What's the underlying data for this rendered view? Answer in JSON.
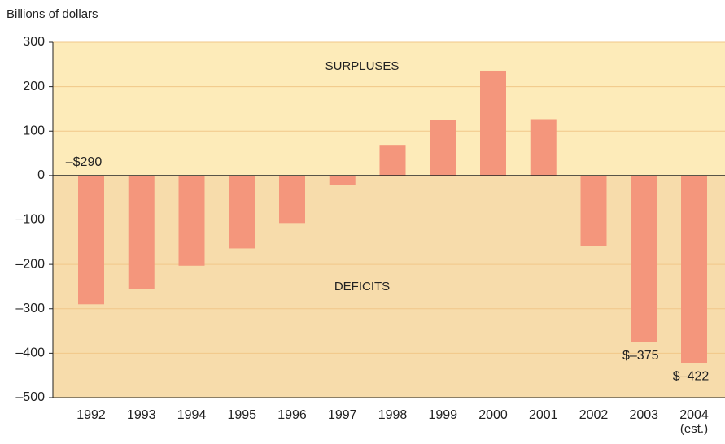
{
  "chart_data": {
    "type": "bar",
    "y_label": "Billions of dollars",
    "categories": [
      "1992",
      "1993",
      "1994",
      "1995",
      "1996",
      "1997",
      "1998",
      "1999",
      "2000",
      "2001",
      "2002",
      "2003",
      "2004"
    ],
    "values": [
      -290,
      -255,
      -203,
      -164,
      -107,
      -22,
      69,
      126,
      236,
      127,
      -158,
      -375,
      -422
    ],
    "value_labels": [
      "–$290",
      null,
      null,
      null,
      null,
      null,
      null,
      null,
      null,
      null,
      null,
      "$–375",
      "$–422"
    ],
    "color": "#f4967c",
    "ylim": [
      -500,
      300
    ],
    "yticks": [
      300,
      200,
      100,
      0,
      {
        "value": -100,
        "label": "–100"
      },
      {
        "value": -200,
        "label": "–200"
      },
      {
        "value": -300,
        "label": "–300"
      },
      {
        "value": -400,
        "label": "–400"
      },
      {
        "value": -500,
        "label": "–500"
      }
    ],
    "grid": true,
    "annotations": [
      "SURPLUSES",
      "DEFICITS",
      "(est.)"
    ]
  }
}
